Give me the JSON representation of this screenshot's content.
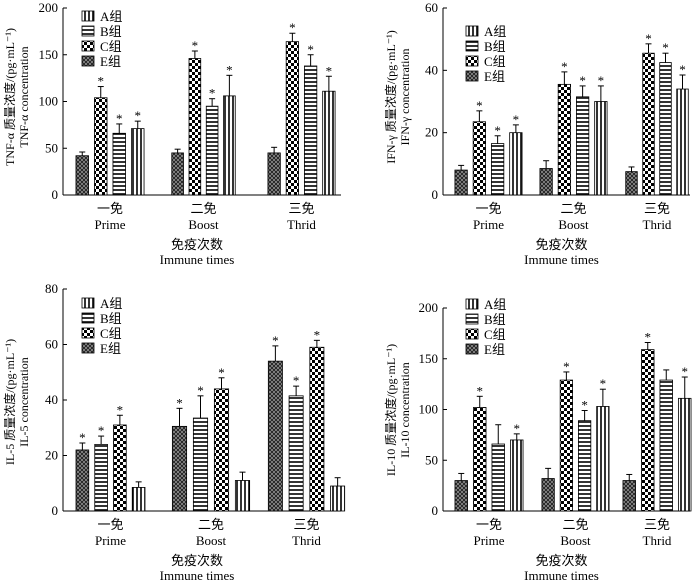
{
  "legend": [
    "A组",
    "B组",
    "C组",
    "E组"
  ],
  "chart_data": [
    {
      "type": "bar",
      "ylabel_cn": "TNF-α 质量浓度/(pg·mL⁻¹)",
      "ylabel_en": "TNF-α concentration",
      "xlabel_cn": "免疫次数",
      "xlabel_en": "Immune times",
      "categories_cn": [
        "一免",
        "二免",
        "三免"
      ],
      "categories_en": [
        "Prime",
        "Boost",
        "Thrid"
      ],
      "ylim": [
        0,
        200
      ],
      "yticks": [
        0,
        50,
        100,
        150,
        200
      ],
      "series": [
        {
          "name": "A组",
          "values": [
            42,
            45,
            45
          ],
          "errors": [
            4,
            4,
            6
          ],
          "sig": [
            false,
            false,
            false
          ]
        },
        {
          "name": "C组",
          "values": [
            104,
            146,
            164
          ],
          "errors": [
            12,
            8,
            9
          ],
          "sig": [
            true,
            true,
            true
          ]
        },
        {
          "name": "B组",
          "values": [
            66,
            95,
            138
          ],
          "errors": [
            10,
            8,
            12
          ],
          "sig": [
            true,
            true,
            true
          ]
        },
        {
          "name": "E组",
          "values": [
            71,
            106,
            111
          ],
          "errors": [
            8,
            22,
            16
          ],
          "sig": [
            true,
            true,
            true
          ]
        }
      ]
    },
    {
      "type": "bar",
      "ylabel_cn": "IFN-γ 质量浓度/(pg·mL⁻¹)",
      "ylabel_en": "IFN-γ concentration",
      "xlabel_cn": "免疫次数",
      "xlabel_en": "Immune times",
      "categories_cn": [
        "一免",
        "二免",
        "三免"
      ],
      "categories_en": [
        "Prime",
        "Boost",
        "Thrid"
      ],
      "ylim": [
        0,
        60
      ],
      "yticks": [
        0,
        20,
        40,
        60
      ],
      "series": [
        {
          "name": "A组",
          "values": [
            8,
            8.5,
            7.5
          ],
          "errors": [
            1.5,
            2.5,
            1.5
          ],
          "sig": [
            false,
            false,
            false
          ]
        },
        {
          "name": "C组",
          "values": [
            23.5,
            35.5,
            45.5
          ],
          "errors": [
            3.5,
            4,
            3
          ],
          "sig": [
            true,
            true,
            true
          ]
        },
        {
          "name": "B组",
          "values": [
            16.5,
            31.5,
            42.5
          ],
          "errors": [
            2.5,
            3.5,
            3
          ],
          "sig": [
            true,
            true,
            true
          ]
        },
        {
          "name": "E组",
          "values": [
            20,
            30,
            34
          ],
          "errors": [
            2.5,
            5,
            4.5
          ],
          "sig": [
            true,
            true,
            true
          ]
        }
      ]
    },
    {
      "type": "bar",
      "ylabel_cn": "IL-5 质量浓度/(pg·mL⁻¹)",
      "ylabel_en": "IL-5 concentration",
      "xlabel_cn": "免疫次数",
      "xlabel_en": "Immune times",
      "categories_cn": [
        "一免",
        "二免",
        "三免"
      ],
      "categories_en": [
        "Prime",
        "Boost",
        "Thrid"
      ],
      "ylim": [
        0,
        80
      ],
      "yticks": [
        0,
        20,
        40,
        60,
        80
      ],
      "series": [
        {
          "name": "A组",
          "values": [
            22,
            30.5,
            54
          ],
          "errors": [
            2.5,
            6.5,
            5.5
          ],
          "sig": [
            true,
            true,
            true
          ]
        },
        {
          "name": "B组",
          "values": [
            24,
            33.5,
            41.5
          ],
          "errors": [
            3,
            8,
            3.5
          ],
          "sig": [
            true,
            true,
            true
          ]
        },
        {
          "name": "C组",
          "values": [
            31,
            44,
            59
          ],
          "errors": [
            3.5,
            4,
            2.5
          ],
          "sig": [
            true,
            true,
            true
          ]
        },
        {
          "name": "E组",
          "values": [
            8.5,
            11,
            9
          ],
          "errors": [
            2,
            3,
            3
          ],
          "sig": [
            false,
            false,
            false
          ]
        }
      ]
    },
    {
      "type": "bar",
      "ylabel_cn": "IL-10 质量浓度/(pg·mL⁻¹)",
      "ylabel_en": "IL-10 concentration",
      "xlabel_cn": "免疫次数",
      "xlabel_en": "Immune times",
      "categories_cn": [
        "一免",
        "二免",
        "三免"
      ],
      "categories_en": [
        "Prime",
        "Boost",
        "Thrid"
      ],
      "ylim": [
        0,
        200
      ],
      "yticks": [
        0,
        50,
        100,
        150,
        200
      ],
      "series": [
        {
          "name": "A组",
          "values": [
            30,
            32,
            30
          ],
          "errors": [
            7,
            10,
            6
          ],
          "sig": [
            false,
            false,
            false
          ]
        },
        {
          "name": "C组",
          "values": [
            102,
            129,
            159
          ],
          "errors": [
            11,
            8,
            7
          ],
          "sig": [
            true,
            true,
            true
          ]
        },
        {
          "name": "B组",
          "values": [
            66,
            89,
            129
          ],
          "errors": [
            19,
            10,
            10
          ],
          "sig": [
            false,
            true,
            false
          ]
        },
        {
          "name": "E组",
          "values": [
            70,
            103,
            111
          ],
          "errors": [
            6,
            17,
            21
          ],
          "sig": [
            true,
            true,
            true
          ]
        }
      ]
    }
  ]
}
